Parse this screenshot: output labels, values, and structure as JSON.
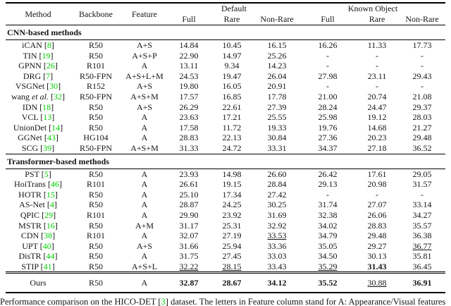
{
  "colors": {
    "citation_green": "#00cc00",
    "text": "#141414",
    "rule": "#000000"
  },
  "table": {
    "headers": {
      "method": "Method",
      "backbone": "Backbone",
      "feature": "Feature",
      "group_default": "Default",
      "group_known_object": "Known Object",
      "sub": [
        "Full",
        "Rare",
        "Non-Rare",
        "Full",
        "Rare",
        "Non-Rare"
      ]
    },
    "sections": [
      {
        "title": "CNN-based methods",
        "rows": [
          {
            "method": [
              {
                "t": "iCAN"
              }
            ],
            "ref": "8",
            "backbone": "R50",
            "feature": "A+S",
            "values": [
              "14.84",
              "10.45",
              "16.15",
              "16.26",
              "11.33",
              "17.73"
            ],
            "styles": [
              "",
              "",
              "",
              "",
              "",
              ""
            ]
          },
          {
            "method": [
              {
                "t": "TIN"
              }
            ],
            "ref": "19",
            "backbone": "R50",
            "feature": "A+S+P",
            "values": [
              "22.90",
              "14.97",
              "25.26",
              "-",
              "-",
              "-"
            ],
            "styles": [
              "",
              "",
              "",
              "",
              "",
              ""
            ]
          },
          {
            "method": [
              {
                "t": "GPNN"
              }
            ],
            "ref": "26",
            "backbone": "R101",
            "feature": "A",
            "values": [
              "13.11",
              "9.34",
              "14.23",
              "-",
              "-",
              "-"
            ],
            "styles": [
              "",
              "",
              "",
              "",
              "",
              ""
            ]
          },
          {
            "method": [
              {
                "t": "DRG"
              }
            ],
            "ref": "7",
            "backbone": "R50-FPN",
            "feature": "A+S+L+M",
            "values": [
              "24.53",
              "19.47",
              "26.04",
              "27.98",
              "23.11",
              "29.43"
            ],
            "styles": [
              "",
              "",
              "",
              "",
              "",
              ""
            ]
          },
          {
            "method": [
              {
                "t": "VSGNet"
              }
            ],
            "ref": "30",
            "backbone": "R152",
            "feature": "A+S",
            "values": [
              "19.80",
              "16.05",
              "20.91",
              "-",
              "-",
              "-"
            ],
            "styles": [
              "",
              "",
              "",
              "",
              "",
              ""
            ]
          },
          {
            "method": [
              {
                "t": "wang "
              },
              {
                "t": "et al.",
                "i": true
              }
            ],
            "ref": "32",
            "backbone": "R50-FPN",
            "feature": "A+S+M",
            "values": [
              "17.57",
              "16.85",
              "17.78",
              "21.00",
              "20.74",
              "21.08"
            ],
            "styles": [
              "",
              "",
              "",
              "",
              "",
              ""
            ]
          },
          {
            "method": [
              {
                "t": "IDN"
              }
            ],
            "ref": "18",
            "backbone": "R50",
            "feature": "A+S",
            "values": [
              "26.29",
              "22.61",
              "27.39",
              "28.24",
              "24.47",
              "29.37"
            ],
            "styles": [
              "",
              "",
              "",
              "",
              "",
              ""
            ]
          },
          {
            "method": [
              {
                "t": "VCL"
              }
            ],
            "ref": "13",
            "backbone": "R50",
            "feature": "A",
            "values": [
              "23.63",
              "17.21",
              "25.55",
              "25.98",
              "19.12",
              "28.03"
            ],
            "styles": [
              "",
              "",
              "",
              "",
              "",
              ""
            ]
          },
          {
            "method": [
              {
                "t": "UnionDet"
              }
            ],
            "ref": "14",
            "backbone": "R50",
            "feature": "A",
            "values": [
              "17.58",
              "11.72",
              "19.33",
              "19.76",
              "14.68",
              "21.27"
            ],
            "styles": [
              "",
              "",
              "",
              "",
              "",
              ""
            ]
          },
          {
            "method": [
              {
                "t": "GGNet"
              }
            ],
            "ref": "43",
            "backbone": "HG104",
            "feature": "A",
            "values": [
              "28.83",
              "22.13",
              "30.84",
              "27.36",
              "20.23",
              "29.48"
            ],
            "styles": [
              "",
              "",
              "",
              "",
              "",
              ""
            ]
          },
          {
            "method": [
              {
                "t": "SCG"
              }
            ],
            "ref": "39",
            "backbone": "R50-FPN",
            "feature": "A+S+M",
            "values": [
              "31.33",
              "24.72",
              "33.31",
              "34.37",
              "27.18",
              "36.52"
            ],
            "styles": [
              "",
              "",
              "",
              "",
              "",
              ""
            ]
          }
        ]
      },
      {
        "title": "Transformer-based methods",
        "rows": [
          {
            "method": [
              {
                "t": "PST"
              }
            ],
            "ref": "5",
            "backbone": "R50",
            "feature": "A",
            "values": [
              "23.93",
              "14.98",
              "26.60",
              "26.42",
              "17.61",
              "29.05"
            ],
            "styles": [
              "",
              "",
              "",
              "",
              "",
              ""
            ]
          },
          {
            "method": [
              {
                "t": "HoiTrans"
              }
            ],
            "ref": "46",
            "backbone": "R101",
            "feature": "A",
            "values": [
              "26.61",
              "19.15",
              "28.84",
              "29.13",
              "20.98",
              "31.57"
            ],
            "styles": [
              "",
              "",
              "",
              "",
              "",
              ""
            ]
          },
          {
            "method": [
              {
                "t": "HOTR"
              }
            ],
            "ref": "15",
            "backbone": "R50",
            "feature": "A",
            "values": [
              "25.10",
              "17.34",
              "27.42",
              "-",
              "-",
              "-"
            ],
            "styles": [
              "",
              "",
              "",
              "",
              "",
              ""
            ]
          },
          {
            "method": [
              {
                "t": "AS-Net"
              }
            ],
            "ref": "4",
            "backbone": "R50",
            "feature": "A",
            "values": [
              "28.87",
              "24.25",
              "30.25",
              "31.74",
              "27.07",
              "33.14"
            ],
            "styles": [
              "",
              "",
              "",
              "",
              "",
              ""
            ]
          },
          {
            "method": [
              {
                "t": "QPIC"
              }
            ],
            "ref": "29",
            "backbone": "R101",
            "feature": "A",
            "values": [
              "29.90",
              "23.92",
              "31.69",
              "32.38",
              "26.06",
              "34.27"
            ],
            "styles": [
              "",
              "",
              "",
              "",
              "",
              ""
            ]
          },
          {
            "method": [
              {
                "t": "MSTR"
              }
            ],
            "ref": "16",
            "backbone": "R50",
            "feature": "A+M",
            "values": [
              "31.17",
              "25.31",
              "32.92",
              "34.02",
              "28.83",
              "35.57"
            ],
            "styles": [
              "",
              "",
              "",
              "",
              "",
              ""
            ]
          },
          {
            "method": [
              {
                "t": "CDN"
              }
            ],
            "ref": "38",
            "backbone": "R101",
            "feature": "A",
            "values": [
              "32.07",
              "27.19",
              "33.53",
              "34.79",
              "29.48",
              "36.38"
            ],
            "styles": [
              "",
              "",
              "u",
              "",
              "",
              ""
            ]
          },
          {
            "method": [
              {
                "t": "UPT"
              }
            ],
            "ref": "40",
            "backbone": "R50",
            "feature": "A+S",
            "values": [
              "31.66",
              "25.94",
              "33.36",
              "35.05",
              "29.27",
              "36.77"
            ],
            "styles": [
              "",
              "",
              "",
              "",
              "",
              "u"
            ]
          },
          {
            "method": [
              {
                "t": "DisTR"
              }
            ],
            "ref": "44",
            "backbone": "R50",
            "feature": "A",
            "values": [
              "31.75",
              "27.45",
              "33.03",
              "34.50",
              "30.13",
              "35.81"
            ],
            "styles": [
              "",
              "",
              "",
              "",
              "",
              ""
            ]
          },
          {
            "method": [
              {
                "t": "STIP"
              }
            ],
            "ref": "41",
            "backbone": "R50",
            "feature": "A+S+L",
            "values": [
              "32.22",
              "28.15",
              "33.43",
              "35.29",
              "31.43",
              "36.45"
            ],
            "styles": [
              "u",
              "u",
              "",
              "u",
              "b",
              ""
            ]
          }
        ]
      }
    ],
    "ours_row": {
      "method": [
        {
          "t": "Ours"
        }
      ],
      "ref": "",
      "backbone": "R50",
      "feature": "A",
      "values": [
        "32.87",
        "28.67",
        "34.12",
        "35.52",
        "30.88",
        "36.91"
      ],
      "styles": [
        "b",
        "b",
        "b",
        "b",
        "u",
        "b"
      ]
    }
  },
  "caption": {
    "parts": [
      {
        "t": "Performance comparison on the HICO-DET ["
      },
      {
        "t": "3",
        "ref": true
      },
      {
        "t": "] dataset.  The letters in Feature column stand for A: Appearance/Visual features"
      }
    ]
  }
}
